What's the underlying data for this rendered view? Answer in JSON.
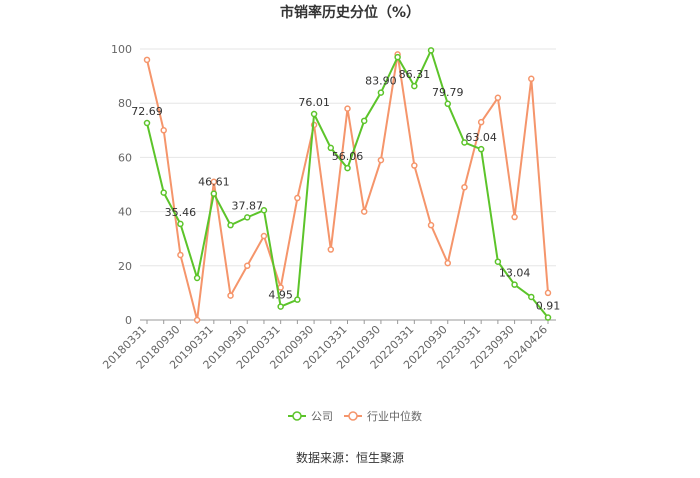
{
  "chart_data": {
    "type": "line",
    "title": "市销率历史分位（%）",
    "categories": [
      "20180331",
      null,
      "20180930",
      null,
      "20190331",
      null,
      "20190930",
      null,
      "20200331",
      null,
      "20200930",
      null,
      "20210331",
      null,
      "20210930",
      null,
      "20220331",
      null,
      "20220930",
      null,
      "20230331",
      null,
      "20230930",
      null,
      "20240426"
    ],
    "series": [
      {
        "name": "公司",
        "color": "#5cc42a",
        "values": [
          72.69,
          47,
          35.46,
          15.5,
          46.61,
          35,
          37.87,
          40.5,
          4.95,
          7.5,
          76.01,
          63.5,
          56.06,
          73.5,
          83.9,
          97,
          86.31,
          99.5,
          79.79,
          65.5,
          63.04,
          21.5,
          13.04,
          8.5,
          0.91
        ],
        "value_labels": [
          "72.69",
          null,
          "35.46",
          null,
          "46.61",
          null,
          "37.87",
          null,
          "4.95",
          null,
          "76.01",
          null,
          "56.06",
          null,
          "83.90",
          null,
          "86.31",
          null,
          "79.79",
          null,
          "63.04",
          null,
          "13.04",
          null,
          "0.91"
        ]
      },
      {
        "name": "行业中位数",
        "color": "#f5956b",
        "values": [
          96,
          70,
          24,
          0,
          51,
          9,
          20,
          31,
          12,
          45,
          72,
          26,
          78,
          40,
          59,
          98,
          57,
          35,
          21,
          49,
          73,
          82,
          38,
          89,
          10
        ]
      }
    ],
    "ylim": [
      0,
      100
    ],
    "yticks": [
      0,
      20,
      40,
      60,
      80,
      100
    ],
    "grid": true,
    "source": "数据来源：恒生聚源"
  }
}
